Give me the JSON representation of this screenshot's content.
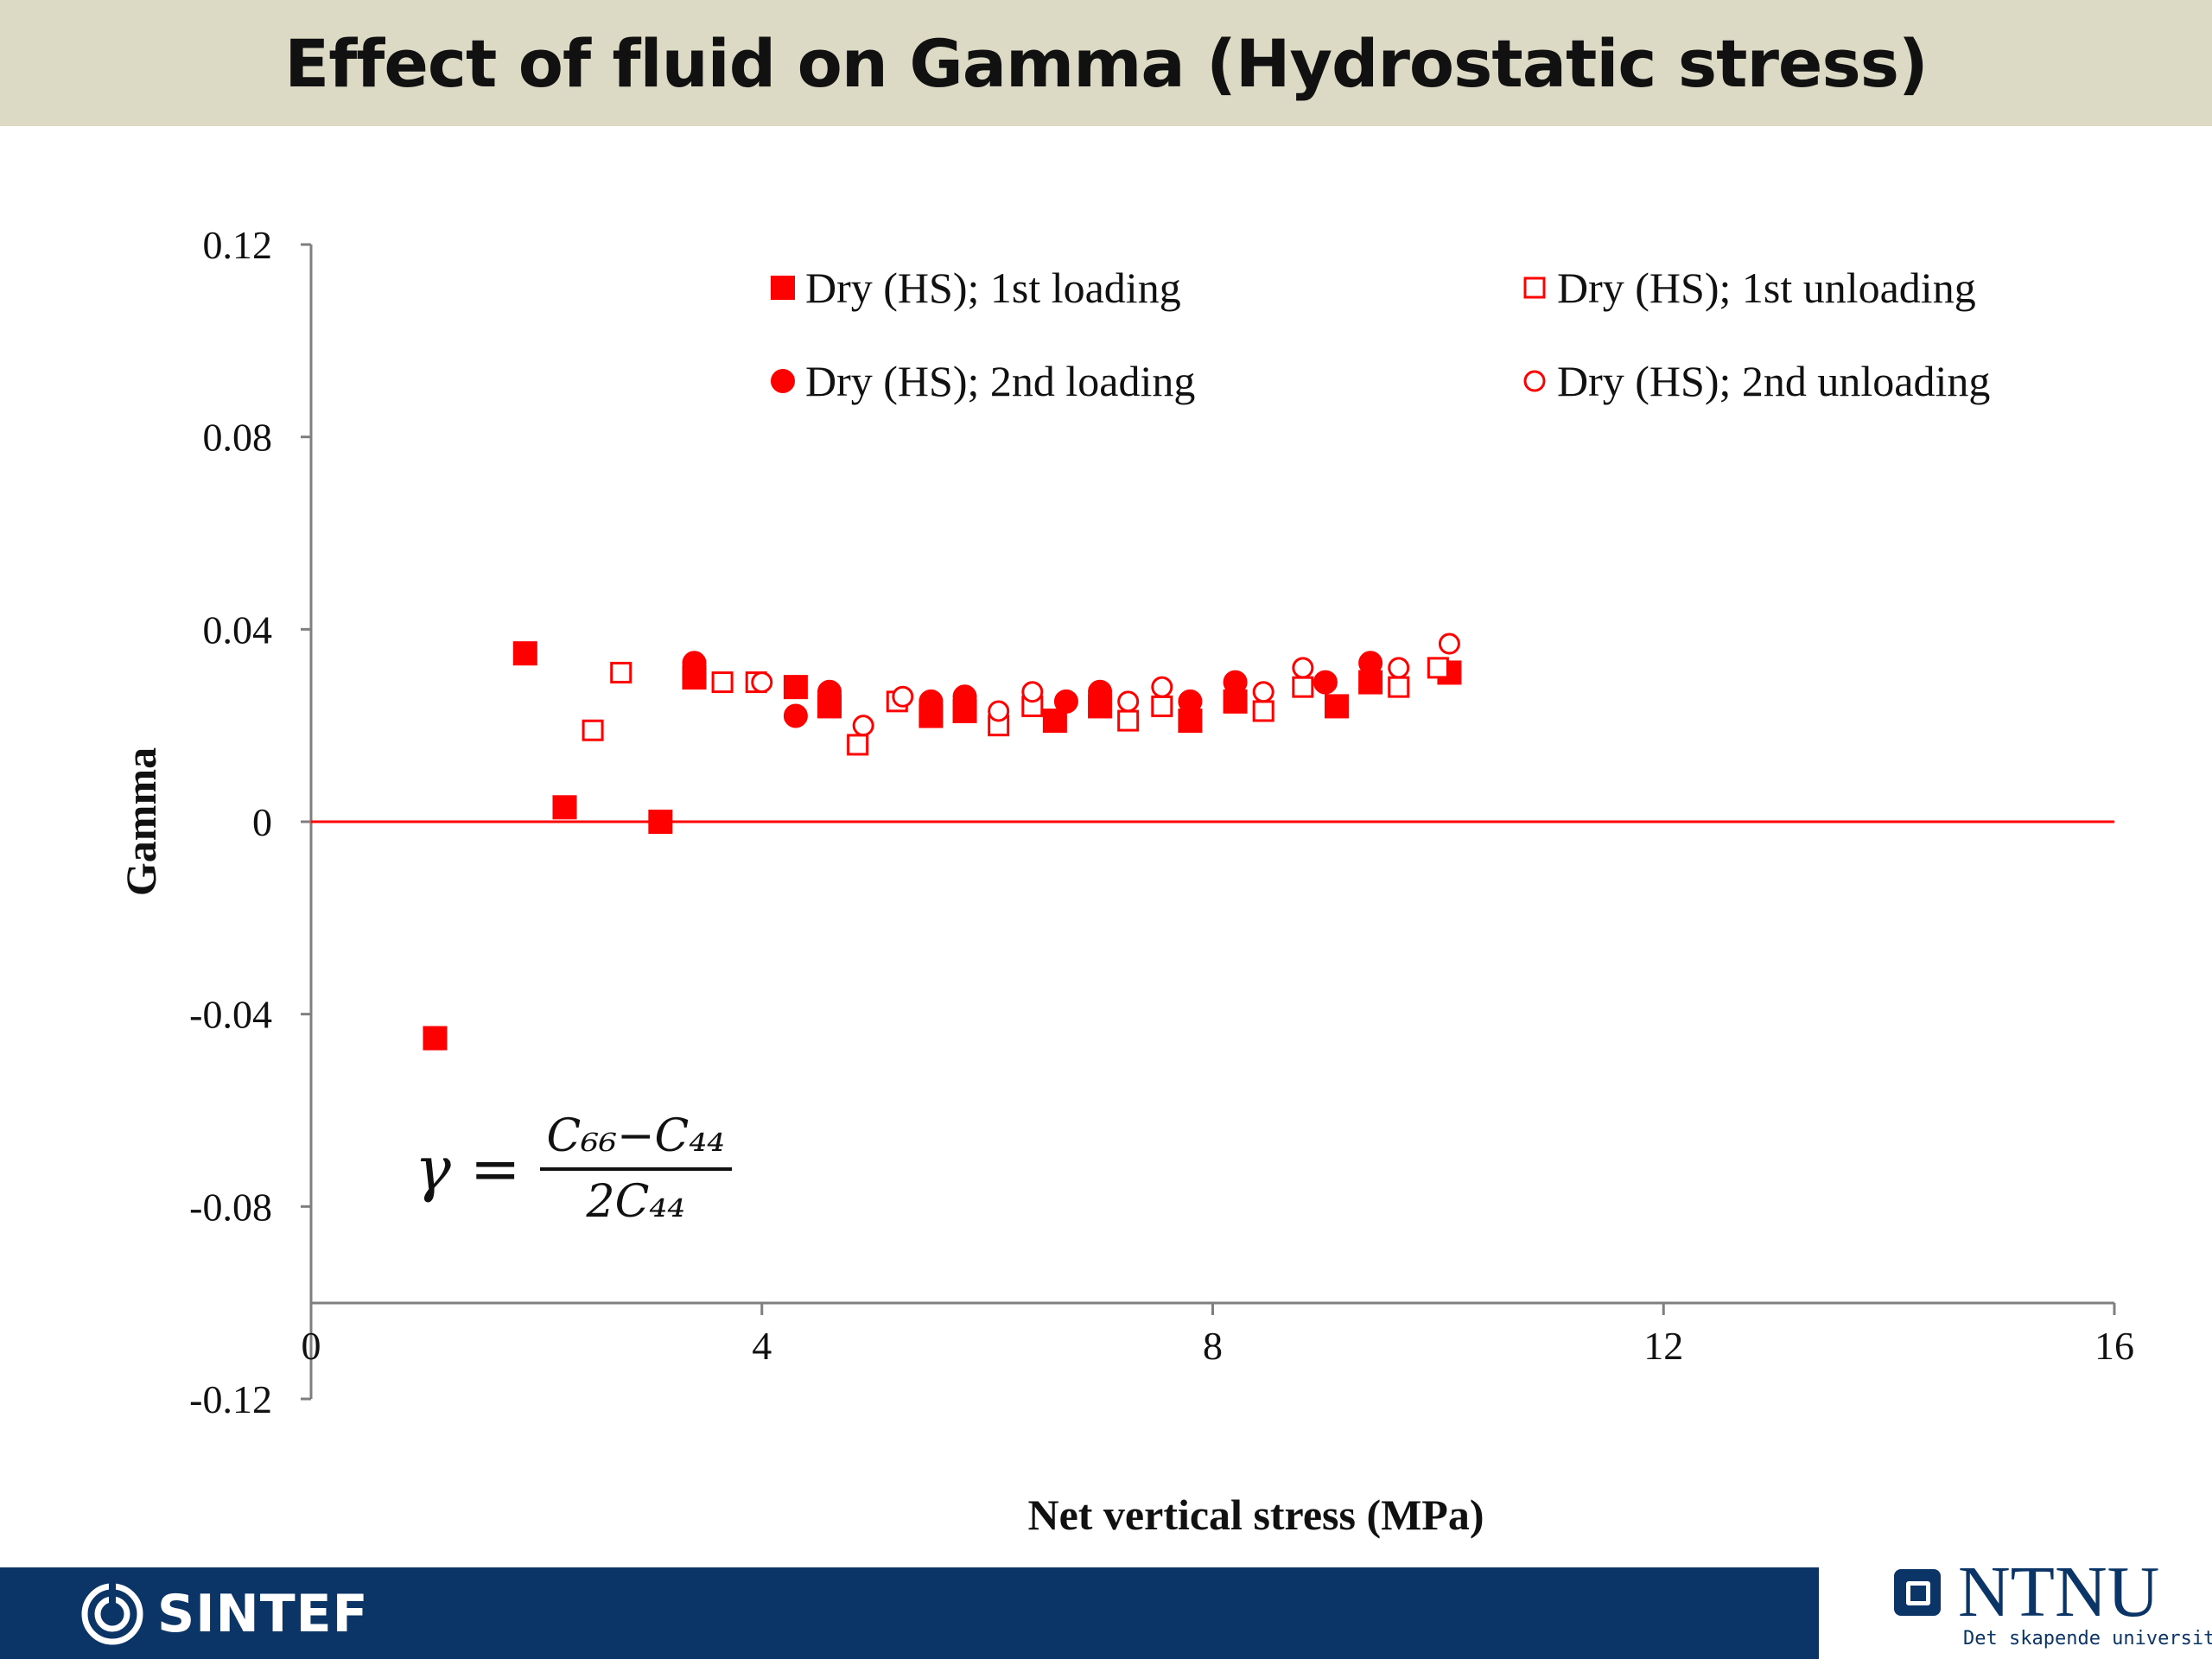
{
  "slide": {
    "title": "Effect of fluid on Gamma (Hydrostatic stress)"
  },
  "formula": {
    "lhs": "γ",
    "eq": "=",
    "numerator": "C₆₆−C₄₄",
    "denominator": "2C₄₄"
  },
  "footer": {
    "sintef": "SINTEF",
    "ntnu": "NTNU",
    "ntnu_tagline": "Det skapende universitet",
    "bar_color": "#0b3467"
  },
  "chart_data": {
    "type": "scatter",
    "title": "",
    "xlabel": "Net vertical stress (MPa)",
    "ylabel": "Gamma",
    "xlim": [
      0,
      16
    ],
    "ylim": [
      -0.12,
      0.12
    ],
    "xticks": [
      0,
      4,
      8,
      12,
      16
    ],
    "yticks": [
      0.12,
      0.08,
      0.04,
      0,
      -0.04,
      -0.08,
      -0.12
    ],
    "ytick_labels": [
      "0.12",
      "0.08",
      "0.04",
      "0",
      "-0.04",
      "-0.08",
      "-0.12"
    ],
    "grid": false,
    "legend_position": "top",
    "color": "#ff0000",
    "reference_line": {
      "y": 0,
      "color": "#ff0000"
    },
    "series": [
      {
        "name": "Dry (HS); 1st loading",
        "marker": "square-filled",
        "x": [
          1.1,
          1.9,
          2.25,
          3.1,
          3.4,
          4.3,
          4.6,
          5.5,
          5.8,
          6.6,
          7.0,
          7.8,
          8.2,
          9.1,
          9.4,
          10.1
        ],
        "y": [
          -0.045,
          0.035,
          0.003,
          0.0,
          0.03,
          0.028,
          0.024,
          0.022,
          0.023,
          0.021,
          0.024,
          0.021,
          0.025,
          0.024,
          0.029,
          0.031
        ]
      },
      {
        "name": "Dry (HS); 1st unloading",
        "marker": "square-open",
        "x": [
          2.5,
          2.75,
          3.65,
          3.95,
          4.85,
          5.2,
          6.1,
          6.4,
          7.25,
          7.55,
          8.45,
          8.8,
          9.65,
          10.0
        ],
        "y": [
          0.019,
          0.031,
          0.029,
          0.029,
          0.016,
          0.025,
          0.02,
          0.024,
          0.021,
          0.024,
          0.023,
          0.028,
          0.028,
          0.032
        ]
      },
      {
        "name": "Dry (HS); 2nd loading",
        "marker": "circle-filled",
        "x": [
          3.4,
          4.3,
          4.6,
          5.5,
          5.8,
          6.7,
          7.0,
          7.8,
          8.2,
          9.0,
          9.4
        ],
        "y": [
          0.033,
          0.022,
          0.027,
          0.025,
          0.026,
          0.025,
          0.027,
          0.025,
          0.029,
          0.029,
          0.033
        ]
      },
      {
        "name": "Dry (HS); 2nd unloading",
        "marker": "circle-open",
        "x": [
          4.0,
          4.9,
          5.25,
          6.1,
          6.4,
          7.25,
          7.55,
          8.45,
          8.8,
          9.65,
          10.1
        ],
        "y": [
          0.029,
          0.02,
          0.026,
          0.023,
          0.027,
          0.025,
          0.028,
          0.027,
          0.032,
          0.032,
          0.037
        ]
      }
    ]
  }
}
